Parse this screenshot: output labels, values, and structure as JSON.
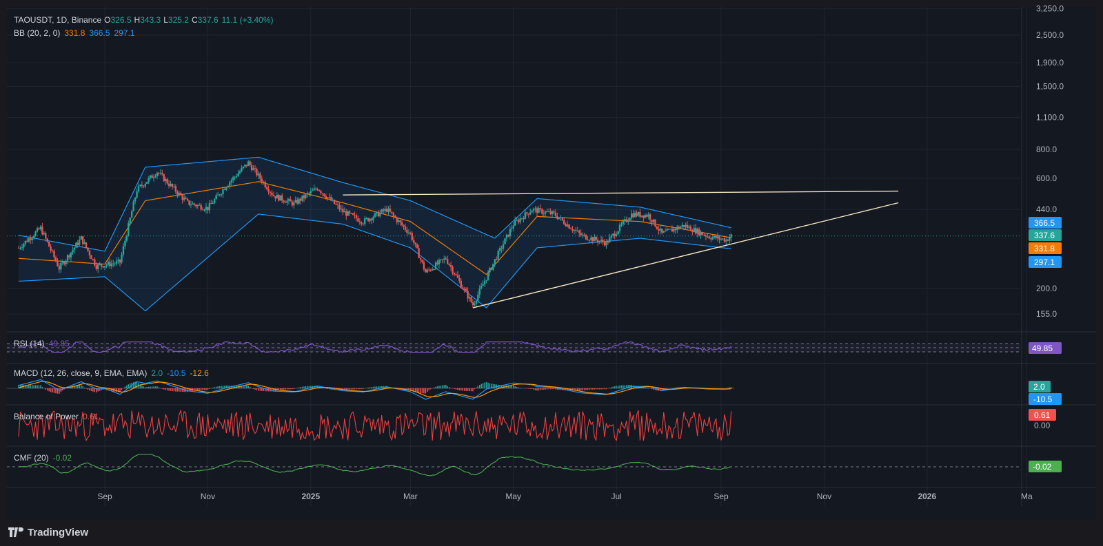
{
  "header": {
    "symbol": "TAOUSDT, 1D, Binance",
    "o_label": "O",
    "o_value": "326.5",
    "h_label": "H",
    "h_value": "343.3",
    "l_label": "L",
    "l_value": "325.2",
    "c_label": "C",
    "c_value": "337.6",
    "change": "11.1 (+3.40%)",
    "bb_label": "BB (20, 2, 0)",
    "bb_basis": "331.8",
    "bb_upper": "366.5",
    "bb_lower": "297.1"
  },
  "indicators": {
    "rsi": {
      "label": "RSI (14)",
      "value": "49.85",
      "color": "#7e57c2"
    },
    "macd": {
      "label": "MACD (12, 26, close, 9, EMA, EMA)",
      "hist": "2.0",
      "macd": "-10.5",
      "signal": "-12.6",
      "tag_top": "2.0",
      "tag_bottom": "-10.5"
    },
    "bop": {
      "label": "Balance of Power",
      "value": "0.61",
      "zero": "0.00"
    },
    "cmf": {
      "label": "CMF (20)",
      "value": "-0.02"
    }
  },
  "price_tags": {
    "upper": "366.5",
    "close": "337.6",
    "basis": "331.8",
    "lower": "297.1"
  },
  "brand": {
    "name": "TradingView"
  },
  "colors": {
    "up": "#26a69a",
    "down": "#ef5350",
    "basis": "#f57c00",
    "band": "#2196f3",
    "trend": "#f5e6c4",
    "rsi": "#7e57c2",
    "bop": "#f04040",
    "cmf": "#4caf50",
    "macd_line": "#2196f3",
    "signal_line": "#ff9800"
  },
  "chart_data": {
    "type": "candlestick",
    "symbol": "TAOUSDT",
    "interval": "1D",
    "exchange": "Binance",
    "scale": "log",
    "y_ticks": [
      "3,250.0",
      "2,500.0",
      "1,900.0",
      "1,500.0",
      "1,100.0",
      "800.0",
      "600.0",
      "440.0",
      "200.0",
      "155.0"
    ],
    "x_ticks": [
      "Sep",
      "Nov",
      "2025",
      "Mar",
      "May",
      "Jul",
      "Sep",
      "Nov",
      "2026",
      "Ma"
    ],
    "approx_close_path": [
      {
        "date": "2024-07-12",
        "close": 300
      },
      {
        "date": "2024-07-25",
        "close": 365
      },
      {
        "date": "2024-08-05",
        "close": 245
      },
      {
        "date": "2024-08-18",
        "close": 330
      },
      {
        "date": "2024-08-27",
        "close": 250
      },
      {
        "date": "2024-09-10",
        "close": 260
      },
      {
        "date": "2024-09-20",
        "close": 535
      },
      {
        "date": "2024-10-02",
        "close": 640
      },
      {
        "date": "2024-10-20",
        "close": 470
      },
      {
        "date": "2024-11-01",
        "close": 445
      },
      {
        "date": "2024-11-12",
        "close": 560
      },
      {
        "date": "2024-11-25",
        "close": 700
      },
      {
        "date": "2024-12-10",
        "close": 505
      },
      {
        "date": "2024-12-22",
        "close": 465
      },
      {
        "date": "2025-01-05",
        "close": 545
      },
      {
        "date": "2025-01-20",
        "close": 430
      },
      {
        "date": "2025-02-01",
        "close": 390
      },
      {
        "date": "2025-02-15",
        "close": 440
      },
      {
        "date": "2025-03-01",
        "close": 345
      },
      {
        "date": "2025-03-10",
        "close": 235
      },
      {
        "date": "2025-03-22",
        "close": 270
      },
      {
        "date": "2025-04-07",
        "close": 170
      },
      {
        "date": "2025-04-20",
        "close": 265
      },
      {
        "date": "2025-05-01",
        "close": 380
      },
      {
        "date": "2025-05-12",
        "close": 440
      },
      {
        "date": "2025-05-25",
        "close": 420
      },
      {
        "date": "2025-06-10",
        "close": 340
      },
      {
        "date": "2025-06-25",
        "close": 315
      },
      {
        "date": "2025-07-10",
        "close": 420
      },
      {
        "date": "2025-07-20",
        "close": 415
      },
      {
        "date": "2025-07-28",
        "close": 345
      },
      {
        "date": "2025-08-10",
        "close": 375
      },
      {
        "date": "2025-08-25",
        "close": 335
      },
      {
        "date": "2025-09-04",
        "close": 325
      },
      {
        "date": "2025-09-07",
        "close": 337.6
      }
    ],
    "bollinger": {
      "upper": [
        {
          "date": "2024-07-12",
          "v": 340
        },
        {
          "date": "2024-09-01",
          "v": 290
        },
        {
          "date": "2024-09-25",
          "v": 670
        },
        {
          "date": "2024-12-01",
          "v": 740
        },
        {
          "date": "2025-01-20",
          "v": 575
        },
        {
          "date": "2025-03-01",
          "v": 480
        },
        {
          "date": "2025-04-20",
          "v": 330
        },
        {
          "date": "2025-05-15",
          "v": 490
        },
        {
          "date": "2025-07-15",
          "v": 450
        },
        {
          "date": "2025-09-07",
          "v": 366.5
        }
      ],
      "basis": [
        {
          "date": "2024-07-12",
          "v": 270
        },
        {
          "date": "2024-09-01",
          "v": 255
        },
        {
          "date": "2024-09-25",
          "v": 480
        },
        {
          "date": "2024-12-01",
          "v": 580
        },
        {
          "date": "2025-01-20",
          "v": 470
        },
        {
          "date": "2025-03-01",
          "v": 390
        },
        {
          "date": "2025-04-15",
          "v": 230
        },
        {
          "date": "2025-05-15",
          "v": 410
        },
        {
          "date": "2025-07-15",
          "v": 390
        },
        {
          "date": "2025-09-07",
          "v": 331.8
        }
      ],
      "lower": [
        {
          "date": "2024-07-12",
          "v": 215
        },
        {
          "date": "2024-09-01",
          "v": 225
        },
        {
          "date": "2024-09-25",
          "v": 160
        },
        {
          "date": "2024-12-01",
          "v": 420
        },
        {
          "date": "2025-01-20",
          "v": 380
        },
        {
          "date": "2025-03-01",
          "v": 300
        },
        {
          "date": "2025-04-15",
          "v": 165
        },
        {
          "date": "2025-05-15",
          "v": 300
        },
        {
          "date": "2025-07-15",
          "v": 330
        },
        {
          "date": "2025-09-07",
          "v": 297.1
        }
      ]
    },
    "trendlines": [
      {
        "name": "resistance",
        "from": {
          "date": "2025-01-20",
          "v": 508
        },
        "to": {
          "date": "2025-12-15",
          "v": 528
        }
      },
      {
        "name": "support",
        "from": {
          "date": "2025-04-07",
          "v": 165
        },
        "to": {
          "date": "2025-12-15",
          "v": 470
        }
      }
    ],
    "rsi": {
      "last": 49.85,
      "levels": [
        70,
        50,
        30
      ]
    },
    "macd": {
      "hist": 2.0,
      "macd": -10.5,
      "signal": -12.6
    },
    "bop": {
      "last": 0.61,
      "range": [
        -1,
        1
      ]
    },
    "cmf": {
      "last": -0.02
    }
  }
}
